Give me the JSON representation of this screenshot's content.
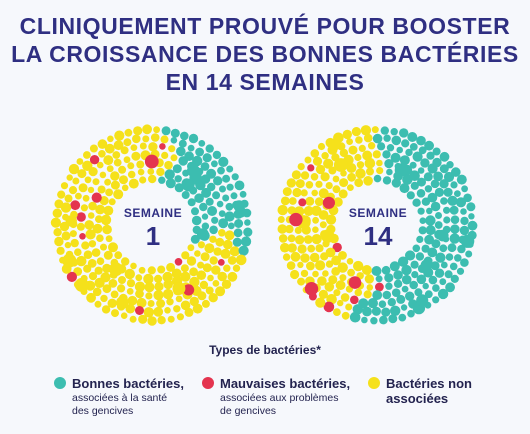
{
  "headline": {
    "line1": "CLINIQUEMENT PROUVÉ POUR BOOSTER",
    "line2": "LA CROISSANCE DES BONNES BACTÉRIES",
    "line3": "EN 14 SEMAINES"
  },
  "colors": {
    "good": "#3cbdb0",
    "bad": "#e4344f",
    "neutral": "#f5e11b",
    "text": "#2f2f82"
  },
  "chart_data": [
    {
      "type": "pie",
      "chart_style": "donut-of-dots",
      "week_label": "SEMAINE",
      "week_number": "1",
      "categories": [
        "Bonnes bactéries",
        "Mauvaises bactéries",
        "Bactéries non associées"
      ],
      "values": [
        24,
        4,
        72
      ],
      "unit": "approx. % share of dots"
    },
    {
      "type": "pie",
      "chart_style": "donut-of-dots",
      "week_label": "SEMAINE",
      "week_number": "14",
      "categories": [
        "Bonnes bactéries",
        "Mauvaises bactéries",
        "Bactéries non associées"
      ],
      "values": [
        52,
        2,
        46
      ],
      "unit": "approx. % share of dots"
    }
  ],
  "legend": {
    "title": "Types de bactéries*",
    "items": [
      {
        "name": "Bonnes bactéries,",
        "sub1": "associées à la santé",
        "sub2": "des gencives",
        "color": "#3cbdb0"
      },
      {
        "name": "Mauvaises bactéries,",
        "sub1": "associées aux problèmes",
        "sub2": "de gencives",
        "color": "#e4344f"
      },
      {
        "name": "Bactéries non",
        "sub1": "associées",
        "sub2": "",
        "color": "#f5e11b"
      }
    ]
  }
}
